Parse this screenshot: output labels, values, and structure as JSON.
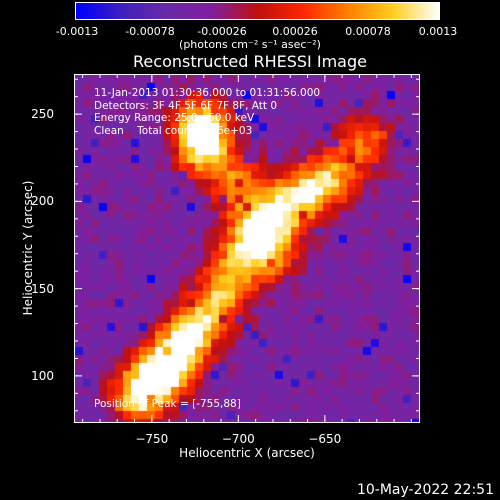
{
  "colorbar": {
    "tick_labels": [
      "-0.0013",
      "-0.00078",
      "-0.00026",
      "0.00026",
      "0.00078",
      "0.0013"
    ],
    "tick_values": [
      -0.0013,
      -0.00078,
      -0.00026,
      0.00026,
      0.00078,
      0.0013
    ],
    "range": [
      -0.0013,
      0.0013
    ],
    "unit_label": "(photons cm⁻² s⁻¹ asec⁻²)"
  },
  "chart_data": {
    "type": "heatmap",
    "title": "Reconstructed RHESSI Image",
    "xlabel": "Heliocentric X (arcsec)",
    "ylabel": "Heliocentric Y (arcsec)",
    "xlim": [
      -795,
      -595
    ],
    "ylim": [
      73,
      273
    ],
    "x_ticks": [
      -750,
      -700,
      -650
    ],
    "x_tick_labels": [
      "−750",
      "−700",
      "−650"
    ],
    "y_ticks": [
      100,
      150,
      200,
      250
    ],
    "y_tick_labels": [
      "100",
      "150",
      "200",
      "250"
    ],
    "colormap": [
      "#0000ff",
      "#4020c0",
      "#6a2aa8",
      "#8020a0",
      "#c01010",
      "#ff2800",
      "#ff8000",
      "#ffd020",
      "#ffffff"
    ],
    "annotations": [
      "11-Jan-2013 01:30:36.000 to 01:31:56.000",
      "Detectors: 3F 4F 5F 6F 7F 8F, Att 0",
      "Energy Range: 25.0 - 50.0 keV",
      "Clean    Total counts: 3.6e+03"
    ],
    "peak_annotation": "Position of Peak = [-755,88]",
    "peak_position": [
      -755,
      88
    ],
    "emission_ridge": [
      {
        "x": -758,
        "y": 88,
        "intensity": 1.0
      },
      {
        "x": -745,
        "y": 102,
        "intensity": 0.95
      },
      {
        "x": -735,
        "y": 112,
        "intensity": 0.8
      },
      {
        "x": -725,
        "y": 128,
        "intensity": 0.8
      },
      {
        "x": -710,
        "y": 145,
        "intensity": 0.75
      },
      {
        "x": -700,
        "y": 165,
        "intensity": 0.7
      },
      {
        "x": -690,
        "y": 185,
        "intensity": 0.8
      },
      {
        "x": -675,
        "y": 195,
        "intensity": 0.75
      },
      {
        "x": -660,
        "y": 205,
        "intensity": 0.7
      },
      {
        "x": -645,
        "y": 215,
        "intensity": 0.7
      },
      {
        "x": -625,
        "y": 235,
        "intensity": 0.6
      },
      {
        "x": -720,
        "y": 230,
        "intensity": 0.9
      },
      {
        "x": -722,
        "y": 245,
        "intensity": 0.85
      },
      {
        "x": -700,
        "y": 210,
        "intensity": 0.65
      },
      {
        "x": -680,
        "y": 170,
        "intensity": 0.6
      }
    ],
    "grid": false
  },
  "footer": {
    "date": "10-May-2022 22:51"
  }
}
